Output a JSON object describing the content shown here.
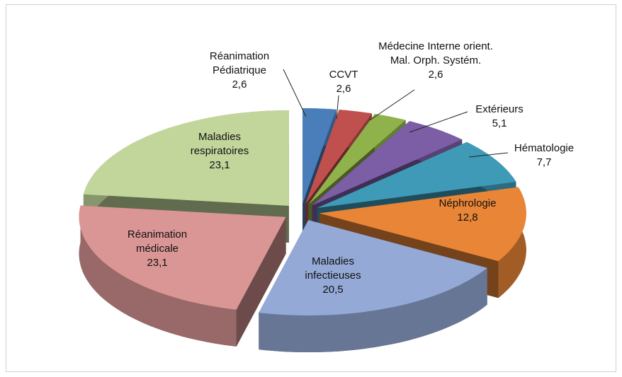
{
  "chart_data": {
    "type": "pie3d",
    "categories": [
      "Réanimation Pédiatrique",
      "CCVT",
      "Médecine Interne orient. Mal. Orph. Systém.",
      "Extérieurs",
      "Hématologie",
      "Néphrologie",
      "Maladies infectieuses",
      "Réanimation médicale",
      "Maladies respiratoires"
    ],
    "values": [
      2.6,
      2.6,
      2.6,
      5.1,
      7.7,
      12.8,
      20.5,
      23.1,
      23.1
    ],
    "value_labels": [
      "2,6",
      "2,6",
      "2,6",
      "5,1",
      "7,7",
      "12,8",
      "20,5",
      "23,1",
      "23,1"
    ],
    "colors": [
      "#4a7ebb",
      "#c0504d",
      "#8fb24a",
      "#7b5ea5",
      "#3f9ab8",
      "#e88537",
      "#94a9d6",
      "#d99694",
      "#c2d69b"
    ]
  }
}
